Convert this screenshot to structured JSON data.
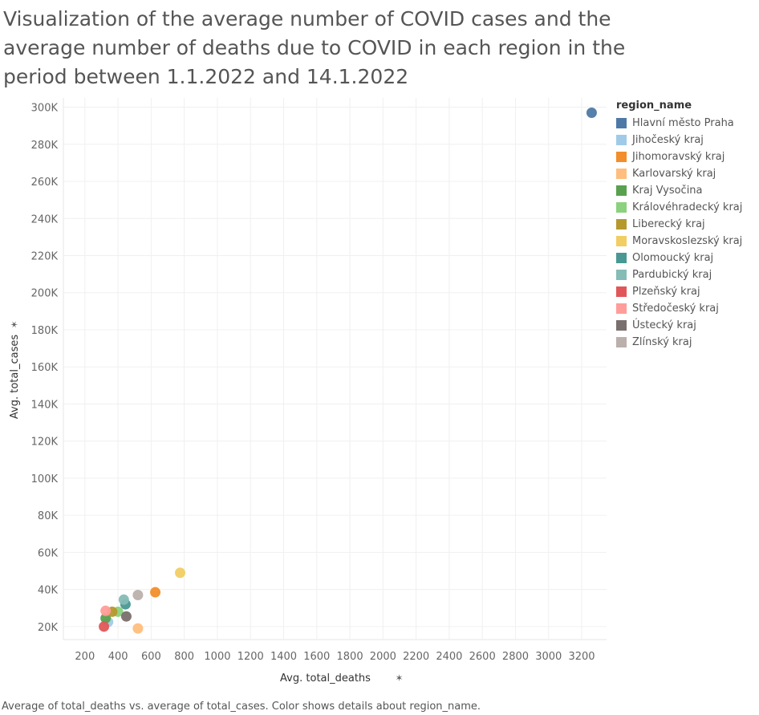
{
  "title_lines": [
    "Visualization of the average number of COVID cases and the",
    "average number of deaths due to COVID in each region in the",
    "period between 1.1.2022 and 14.1.2022"
  ],
  "caption": "Average of total_deaths vs. average of total_cases.  Color shows details about region_name.",
  "chart_data": {
    "type": "scatter",
    "xlabel": "Avg. total_deaths",
    "ylabel": "Avg. total_cases",
    "xlim": [
      70,
      3350
    ],
    "ylim": [
      13000,
      305000
    ],
    "x_ticks": [
      200,
      400,
      600,
      800,
      1000,
      1200,
      1400,
      1600,
      1800,
      2000,
      2200,
      2400,
      2600,
      2800,
      3000,
      3200
    ],
    "x_tick_labels": [
      "200",
      "400",
      "600",
      "800",
      "1000",
      "1200",
      "1400",
      "1600",
      "1800",
      "2000",
      "2200",
      "2400",
      "2600",
      "2800",
      "3000",
      "3200"
    ],
    "y_ticks": [
      20000,
      40000,
      60000,
      80000,
      100000,
      120000,
      140000,
      160000,
      180000,
      200000,
      220000,
      240000,
      260000,
      280000,
      300000
    ],
    "y_tick_labels": [
      "20K",
      "40K",
      "60K",
      "80K",
      "100K",
      "120K",
      "140K",
      "160K",
      "180K",
      "200K",
      "220K",
      "240K",
      "260K",
      "280K",
      "300K"
    ],
    "grid": true,
    "legend_title": "region_name",
    "legend_position": "right",
    "points": [
      {
        "name": "Hlavní město Praha",
        "color": "#4e79a7",
        "x": 3260,
        "y": 297000
      },
      {
        "name": "Jihočeský kraj",
        "color": "#a0cbe8",
        "x": 340,
        "y": 22500
      },
      {
        "name": "Jihomoravský kraj",
        "color": "#f28e2b",
        "x": 625,
        "y": 38500
      },
      {
        "name": "Karlovarský kraj",
        "color": "#ffbe7d",
        "x": 520,
        "y": 19000
      },
      {
        "name": "Kraj Vysočina",
        "color": "#59a14f",
        "x": 325,
        "y": 24500
      },
      {
        "name": "Královéhradecký kraj",
        "color": "#8cd17d",
        "x": 400,
        "y": 28000
      },
      {
        "name": "Liberecký kraj",
        "color": "#b6992d",
        "x": 365,
        "y": 28000
      },
      {
        "name": "Moravskoslezský kraj",
        "color": "#f1ce63",
        "x": 775,
        "y": 49000
      },
      {
        "name": "Olomoucký kraj",
        "color": "#499894",
        "x": 445,
        "y": 32000
      },
      {
        "name": "Pardubický kraj",
        "color": "#86bcb6",
        "x": 435,
        "y": 34500
      },
      {
        "name": "Plzeňský kraj",
        "color": "#e15759",
        "x": 315,
        "y": 20000
      },
      {
        "name": "Středočeský kraj",
        "color": "#ff9d9a",
        "x": 325,
        "y": 28500
      },
      {
        "name": "Ústecký kraj",
        "color": "#79706e",
        "x": 450,
        "y": 25500
      },
      {
        "name": "Zlínský kraj",
        "color": "#bab0ac",
        "x": 520,
        "y": 37000
      }
    ]
  }
}
